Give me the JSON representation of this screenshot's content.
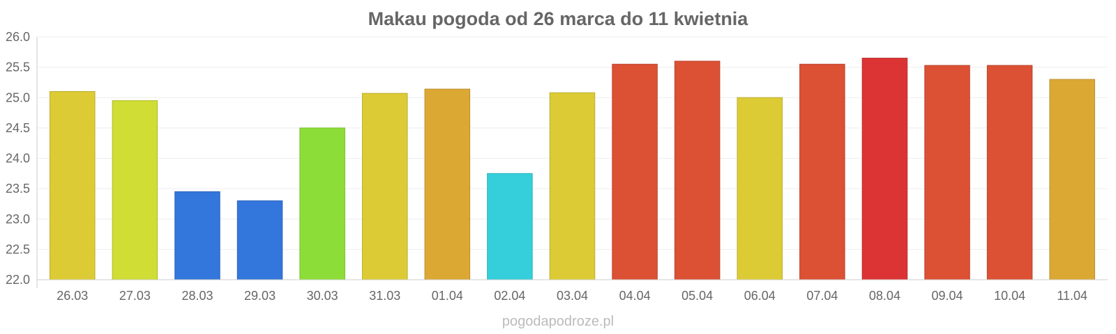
{
  "chart_data": {
    "type": "bar",
    "title": "Makau pogoda od 26 marca do 11 kwietnia",
    "categories": [
      "26.03",
      "27.03",
      "28.03",
      "29.03",
      "30.03",
      "31.03",
      "01.04",
      "02.04",
      "03.04",
      "04.04",
      "05.04",
      "06.04",
      "07.04",
      "08.04",
      "09.04",
      "10.04",
      "11.04"
    ],
    "values": [
      25.1,
      24.95,
      23.45,
      23.3,
      24.5,
      25.07,
      25.14,
      23.75,
      25.08,
      25.55,
      25.6,
      25.0,
      25.55,
      25.65,
      25.53,
      25.53,
      25.3
    ],
    "colors": [
      "#dccb34",
      "#cfdd34",
      "#3376dc",
      "#3376dc",
      "#8ddd38",
      "#dccb34",
      "#dca834",
      "#35cfdc",
      "#dccb34",
      "#dc5034",
      "#dc5034",
      "#dccb34",
      "#dc5034",
      "#dc3434",
      "#dc5034",
      "#dc5034",
      "#dca834"
    ],
    "ylim": [
      22.0,
      26.0
    ],
    "yticks": [
      "22.0",
      "22.5",
      "23.0",
      "23.5",
      "24.0",
      "24.5",
      "25.0",
      "25.5",
      "26.0"
    ],
    "grid": true,
    "legend": "none"
  },
  "watermark": "pogodapodroze.pl"
}
